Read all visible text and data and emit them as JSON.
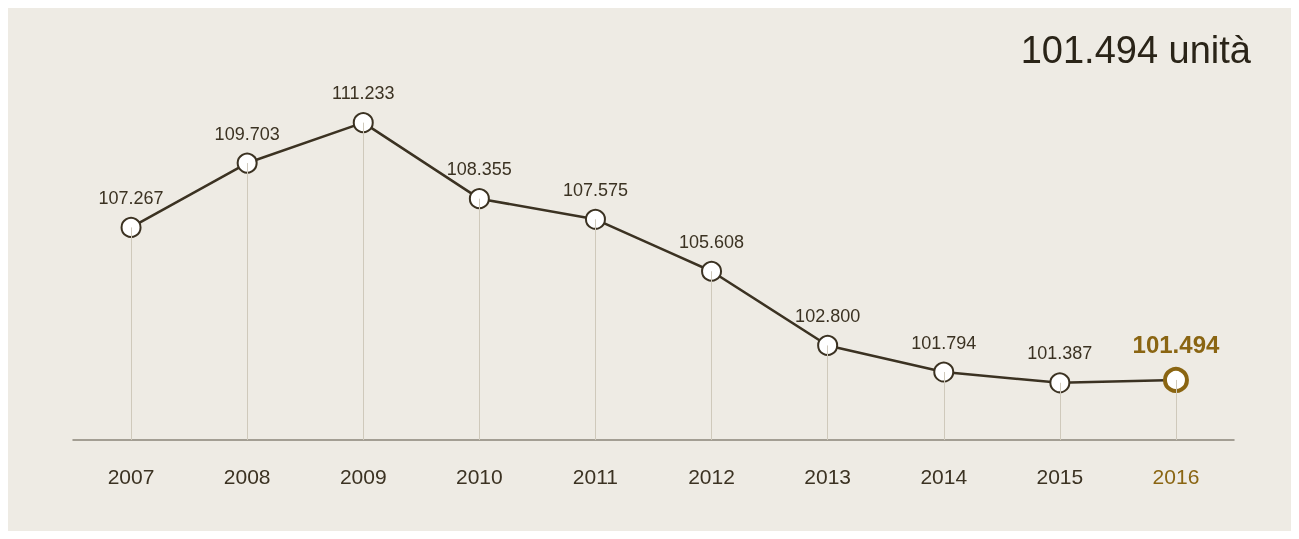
{
  "chart_data": {
    "type": "line",
    "title": "101.494 unità",
    "categories": [
      "2007",
      "2008",
      "2009",
      "2010",
      "2011",
      "2012",
      "2013",
      "2014",
      "2015",
      "2016"
    ],
    "series": [
      {
        "color": "#3b3222",
        "colors": [
          "#3b3222",
          "#3b3222",
          "#3b3222",
          "#3b3222",
          "#3b3222",
          "#3b3222",
          "#3b3222",
          "#3b3222",
          "#3b3222",
          "#8a6512"
        ],
        "values": [
          107267,
          109703,
          111233,
          108355,
          107575,
          105608,
          102800,
          101794,
          101387,
          101494
        ],
        "value_labels": [
          "107.267",
          "109.703",
          "111.233",
          "108.355",
          "107.575",
          "105.608",
          "102.800",
          "101.794",
          "101.387",
          "101.494"
        ]
      }
    ],
    "marker": "circle",
    "line_style": "solid",
    "grid": "x",
    "tick_labels": "x"
  }
}
